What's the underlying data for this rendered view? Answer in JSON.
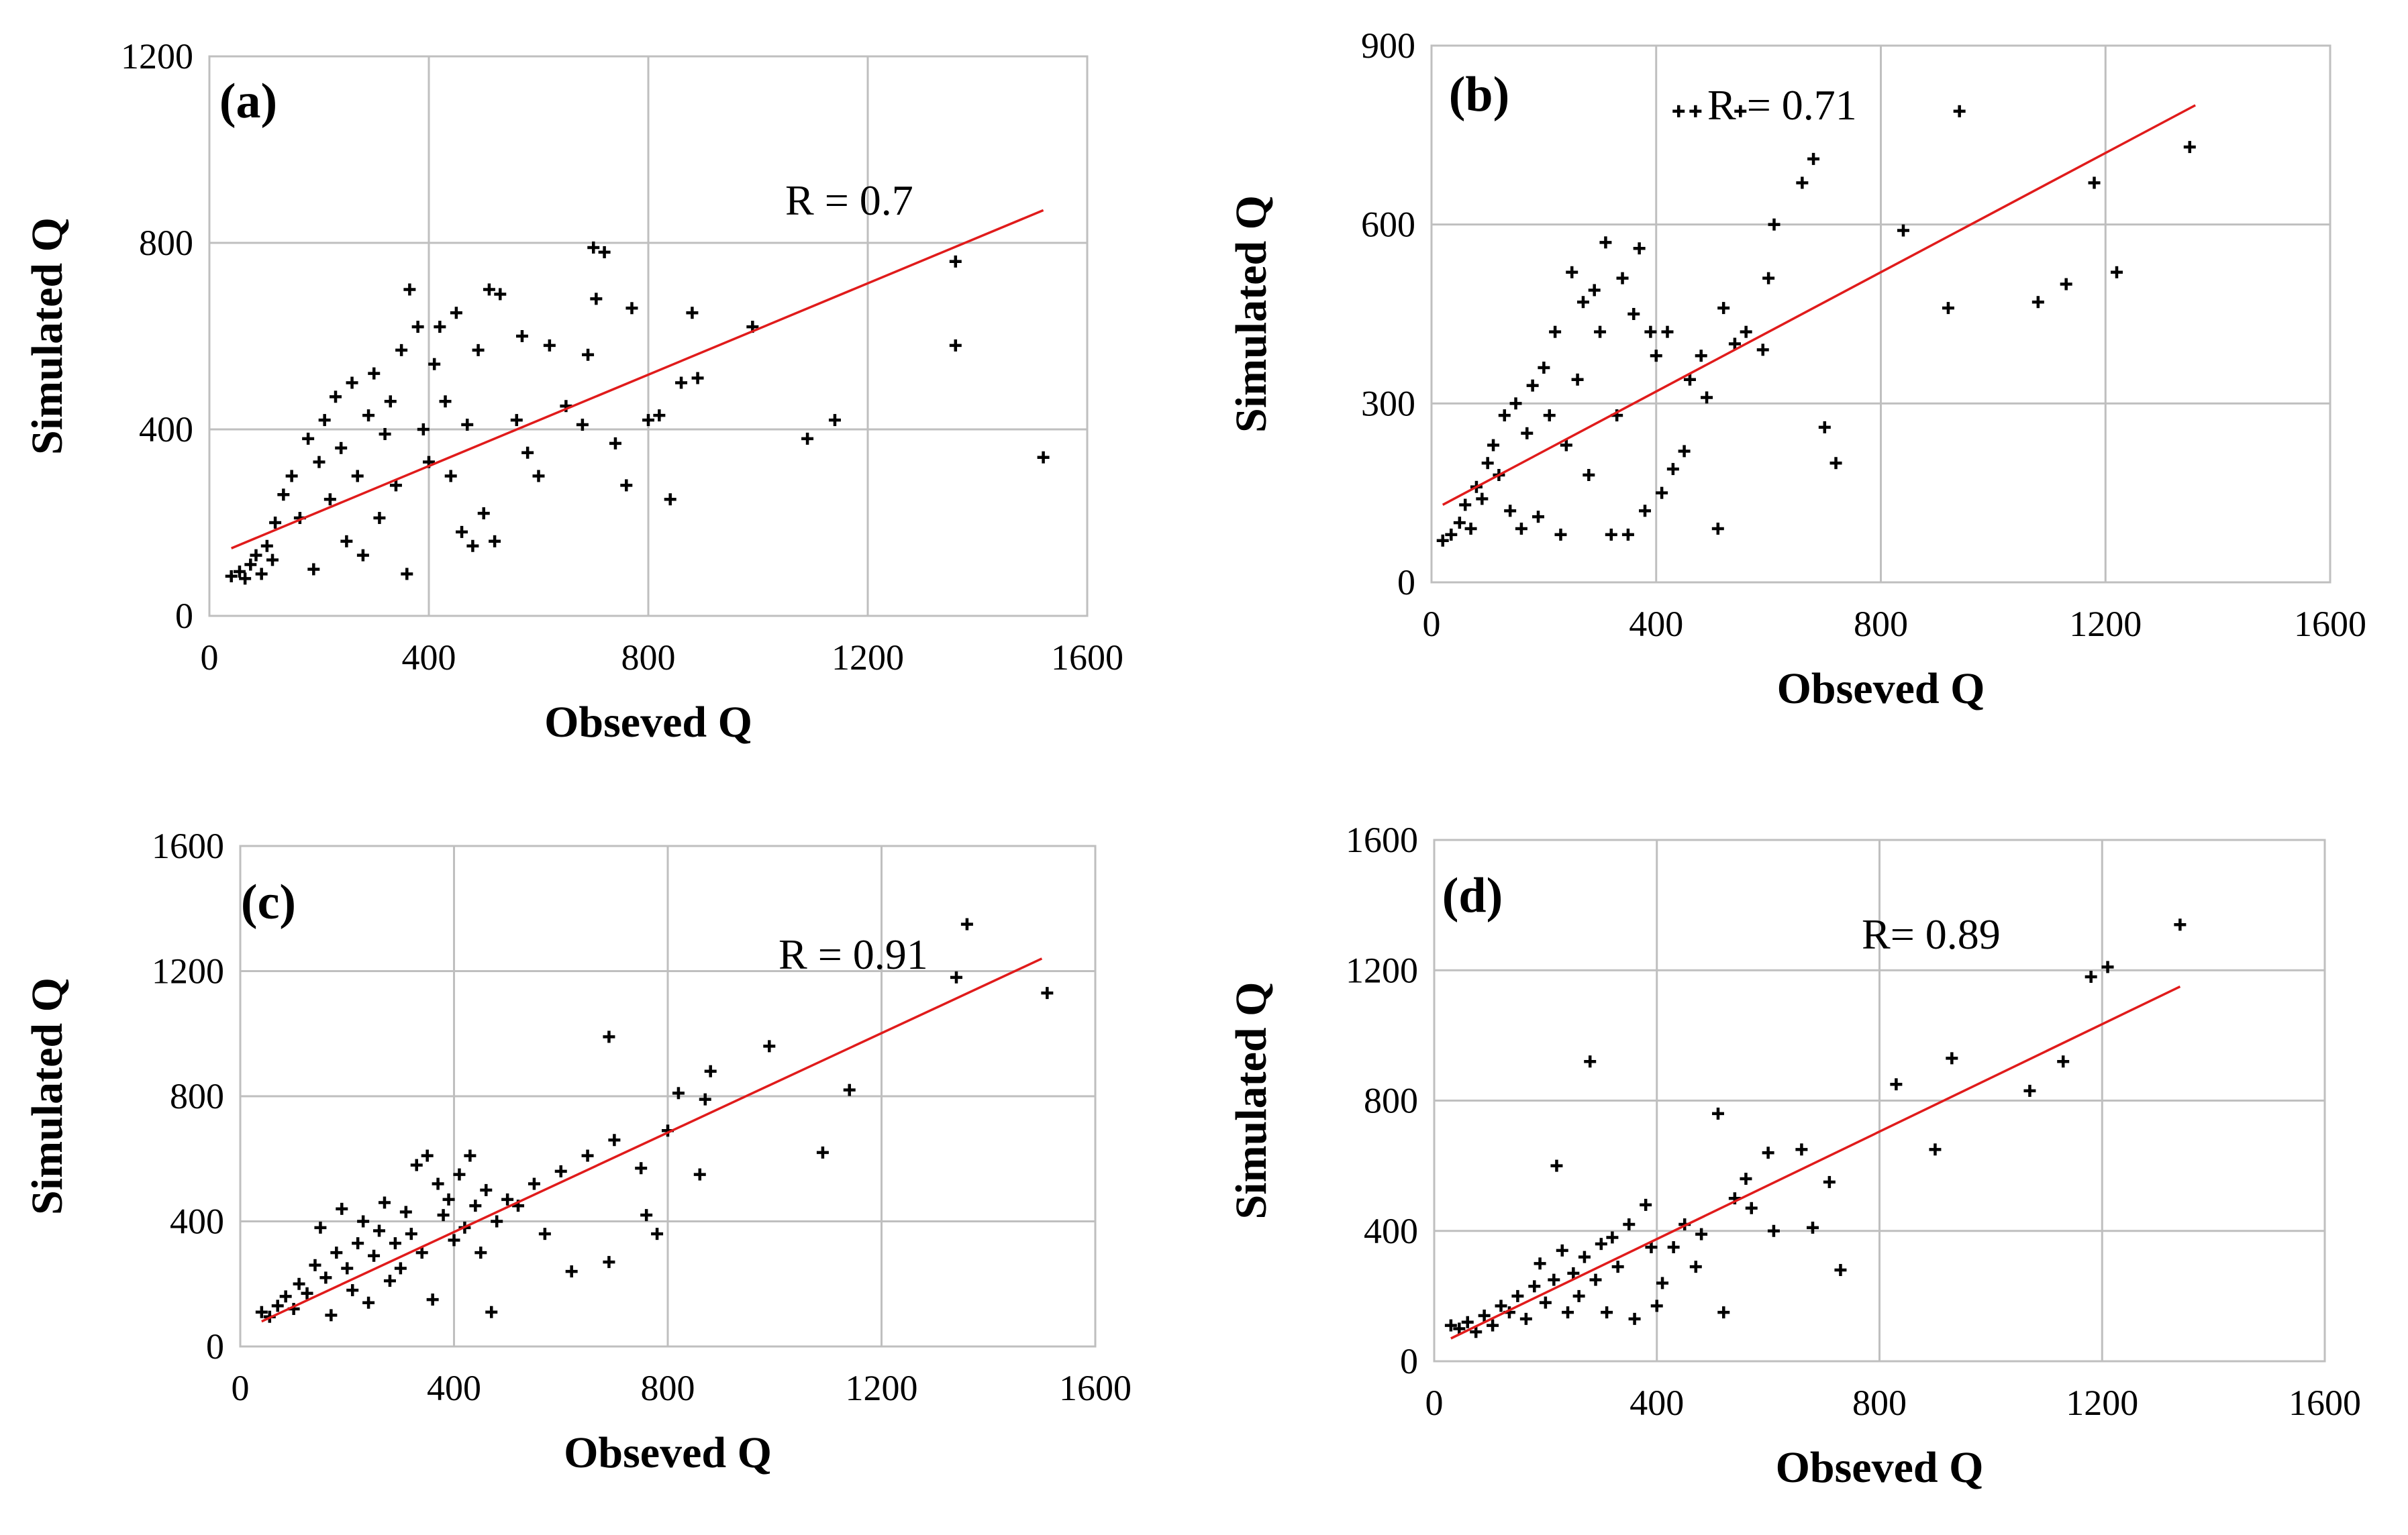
{
  "chart_data": [
    {
      "type": "scatter",
      "panel_label": "(a)",
      "xlabel": "Obseved Q",
      "ylabel": "Simulated Q",
      "annotation": "R = 0.7",
      "xlim": [
        0,
        1600
      ],
      "ylim": [
        0,
        1200
      ],
      "xticks": [
        "0",
        "400",
        "800",
        "1200",
        "1600"
      ],
      "yticks": [
        "0",
        "400",
        "800",
        "1200"
      ],
      "trendline": {
        "x": [
          40,
          1520
        ],
        "y": [
          145,
          870
        ]
      },
      "points": [
        [
          40,
          85
        ],
        [
          55,
          95
        ],
        [
          65,
          80
        ],
        [
          75,
          110
        ],
        [
          85,
          130
        ],
        [
          95,
          90
        ],
        [
          105,
          150
        ],
        [
          115,
          120
        ],
        [
          120,
          200
        ],
        [
          135,
          260
        ],
        [
          150,
          300
        ],
        [
          165,
          210
        ],
        [
          180,
          380
        ],
        [
          190,
          100
        ],
        [
          200,
          330
        ],
        [
          210,
          420
        ],
        [
          220,
          250
        ],
        [
          230,
          470
        ],
        [
          240,
          360
        ],
        [
          250,
          160
        ],
        [
          260,
          500
        ],
        [
          270,
          300
        ],
        [
          280,
          130
        ],
        [
          290,
          430
        ],
        [
          300,
          520
        ],
        [
          310,
          210
        ],
        [
          320,
          390
        ],
        [
          330,
          460
        ],
        [
          340,
          280
        ],
        [
          350,
          570
        ],
        [
          360,
          90
        ],
        [
          365,
          700
        ],
        [
          380,
          620
        ],
        [
          390,
          400
        ],
        [
          400,
          330
        ],
        [
          410,
          540
        ],
        [
          420,
          620
        ],
        [
          430,
          460
        ],
        [
          440,
          300
        ],
        [
          450,
          650
        ],
        [
          460,
          180
        ],
        [
          470,
          410
        ],
        [
          480,
          150
        ],
        [
          490,
          570
        ],
        [
          500,
          220
        ],
        [
          510,
          700
        ],
        [
          520,
          160
        ],
        [
          530,
          690
        ],
        [
          560,
          420
        ],
        [
          570,
          600
        ],
        [
          580,
          350
        ],
        [
          600,
          300
        ],
        [
          620,
          580
        ],
        [
          650,
          450
        ],
        [
          680,
          410
        ],
        [
          690,
          560
        ],
        [
          700,
          790
        ],
        [
          705,
          680
        ],
        [
          720,
          780
        ],
        [
          740,
          370
        ],
        [
          760,
          280
        ],
        [
          770,
          660
        ],
        [
          800,
          420
        ],
        [
          820,
          430
        ],
        [
          840,
          250
        ],
        [
          860,
          500
        ],
        [
          880,
          650
        ],
        [
          890,
          510
        ],
        [
          990,
          620
        ],
        [
          1090,
          380
        ],
        [
          1140,
          420
        ],
        [
          1360,
          760
        ],
        [
          1360,
          580
        ],
        [
          1520,
          340
        ]
      ]
    },
    {
      "type": "scatter",
      "panel_label": "(b)",
      "xlabel": "Obseved Q",
      "ylabel": "Simulated Q",
      "annotation": "R = 0.71",
      "xlim": [
        0,
        1600
      ],
      "ylim": [
        0,
        900
      ],
      "xticks": [
        "0",
        "400",
        "800",
        "1200",
        "1600"
      ],
      "yticks": [
        "0",
        "300",
        "600",
        "900"
      ],
      "trendline": {
        "x": [
          20,
          1360
        ],
        "y": [
          130,
          800
        ]
      },
      "points": [
        [
          20,
          70
        ],
        [
          35,
          80
        ],
        [
          50,
          100
        ],
        [
          60,
          130
        ],
        [
          70,
          90
        ],
        [
          80,
          160
        ],
        [
          90,
          140
        ],
        [
          100,
          200
        ],
        [
          110,
          230
        ],
        [
          120,
          180
        ],
        [
          130,
          280
        ],
        [
          140,
          120
        ],
        [
          150,
          300
        ],
        [
          160,
          90
        ],
        [
          170,
          250
        ],
        [
          180,
          330
        ],
        [
          190,
          110
        ],
        [
          200,
          360
        ],
        [
          210,
          280
        ],
        [
          220,
          420
        ],
        [
          230,
          80
        ],
        [
          240,
          230
        ],
        [
          250,
          520
        ],
        [
          260,
          340
        ],
        [
          270,
          470
        ],
        [
          280,
          180
        ],
        [
          290,
          490
        ],
        [
          300,
          420
        ],
        [
          310,
          570
        ],
        [
          320,
          80
        ],
        [
          330,
          280
        ],
        [
          340,
          510
        ],
        [
          350,
          80
        ],
        [
          360,
          450
        ],
        [
          370,
          560
        ],
        [
          380,
          120
        ],
        [
          390,
          420
        ],
        [
          400,
          380
        ],
        [
          410,
          150
        ],
        [
          420,
          420
        ],
        [
          430,
          190
        ],
        [
          440,
          790
        ],
        [
          450,
          220
        ],
        [
          460,
          340
        ],
        [
          470,
          790
        ],
        [
          480,
          380
        ],
        [
          490,
          310
        ],
        [
          510,
          90
        ],
        [
          520,
          460
        ],
        [
          540,
          400
        ],
        [
          550,
          790
        ],
        [
          560,
          420
        ],
        [
          590,
          390
        ],
        [
          600,
          510
        ],
        [
          610,
          600
        ],
        [
          660,
          670
        ],
        [
          680,
          710
        ],
        [
          700,
          260
        ],
        [
          720,
          200
        ],
        [
          840,
          590
        ],
        [
          920,
          460
        ],
        [
          940,
          790
        ],
        [
          1080,
          470
        ],
        [
          1130,
          500
        ],
        [
          1180,
          670
        ],
        [
          1220,
          520
        ],
        [
          1350,
          730
        ]
      ]
    },
    {
      "type": "scatter",
      "panel_label": "(c)",
      "xlabel": "Obseved Q",
      "ylabel": "Simulated Q",
      "annotation": "R = 0.91",
      "xlim": [
        0,
        1600
      ],
      "ylim": [
        0,
        1600
      ],
      "xticks": [
        "0",
        "400",
        "800",
        "1200",
        "1600"
      ],
      "yticks": [
        "0",
        "400",
        "800",
        "1200",
        "1600"
      ],
      "trendline": {
        "x": [
          40,
          1500
        ],
        "y": [
          80,
          1240
        ]
      },
      "points": [
        [
          40,
          110
        ],
        [
          55,
          95
        ],
        [
          70,
          130
        ],
        [
          85,
          160
        ],
        [
          100,
          120
        ],
        [
          110,
          200
        ],
        [
          125,
          170
        ],
        [
          140,
          260
        ],
        [
          150,
          380
        ],
        [
          160,
          220
        ],
        [
          170,
          100
        ],
        [
          180,
          300
        ],
        [
          190,
          440
        ],
        [
          200,
          250
        ],
        [
          210,
          180
        ],
        [
          220,
          330
        ],
        [
          230,
          400
        ],
        [
          240,
          140
        ],
        [
          250,
          290
        ],
        [
          260,
          370
        ],
        [
          270,
          460
        ],
        [
          280,
          210
        ],
        [
          290,
          330
        ],
        [
          300,
          250
        ],
        [
          310,
          430
        ],
        [
          320,
          360
        ],
        [
          330,
          580
        ],
        [
          340,
          300
        ],
        [
          350,
          610
        ],
        [
          360,
          150
        ],
        [
          370,
          520
        ],
        [
          380,
          420
        ],
        [
          390,
          470
        ],
        [
          400,
          340
        ],
        [
          410,
          550
        ],
        [
          420,
          380
        ],
        [
          430,
          610
        ],
        [
          440,
          450
        ],
        [
          450,
          300
        ],
        [
          460,
          500
        ],
        [
          470,
          110
        ],
        [
          480,
          400
        ],
        [
          500,
          470
        ],
        [
          520,
          450
        ],
        [
          550,
          520
        ],
        [
          570,
          360
        ],
        [
          600,
          560
        ],
        [
          620,
          240
        ],
        [
          650,
          610
        ],
        [
          690,
          990
        ],
        [
          690,
          270
        ],
        [
          700,
          660
        ],
        [
          750,
          570
        ],
        [
          760,
          420
        ],
        [
          780,
          360
        ],
        [
          800,
          690
        ],
        [
          820,
          810
        ],
        [
          860,
          550
        ],
        [
          870,
          790
        ],
        [
          880,
          880
        ],
        [
          990,
          960
        ],
        [
          1090,
          620
        ],
        [
          1140,
          820
        ],
        [
          1340,
          1180
        ],
        [
          1360,
          1350
        ],
        [
          1510,
          1130
        ]
      ]
    },
    {
      "type": "scatter",
      "panel_label": "(d)",
      "xlabel": "Obseved Q",
      "ylabel": "Simulated Q",
      "annotation": "R= 0.89",
      "xlim": [
        0,
        1600
      ],
      "ylim": [
        0,
        1600
      ],
      "xticks": [
        "0",
        "400",
        "800",
        "1200",
        "1600"
      ],
      "yticks": [
        "0",
        "400",
        "800",
        "1200",
        "1600"
      ],
      "trendline": {
        "x": [
          30,
          1340
        ],
        "y": [
          70,
          1150
        ]
      },
      "points": [
        [
          30,
          110
        ],
        [
          45,
          100
        ],
        [
          60,
          120
        ],
        [
          75,
          90
        ],
        [
          90,
          140
        ],
        [
          105,
          110
        ],
        [
          120,
          170
        ],
        [
          135,
          150
        ],
        [
          150,
          200
        ],
        [
          165,
          130
        ],
        [
          180,
          230
        ],
        [
          190,
          300
        ],
        [
          200,
          180
        ],
        [
          215,
          250
        ],
        [
          220,
          600
        ],
        [
          230,
          340
        ],
        [
          240,
          150
        ],
        [
          250,
          270
        ],
        [
          260,
          200
        ],
        [
          270,
          320
        ],
        [
          280,
          920
        ],
        [
          290,
          250
        ],
        [
          300,
          360
        ],
        [
          310,
          150
        ],
        [
          320,
          380
        ],
        [
          330,
          290
        ],
        [
          350,
          420
        ],
        [
          360,
          130
        ],
        [
          380,
          480
        ],
        [
          390,
          350
        ],
        [
          400,
          170
        ],
        [
          410,
          240
        ],
        [
          430,
          350
        ],
        [
          450,
          420
        ],
        [
          470,
          290
        ],
        [
          480,
          390
        ],
        [
          510,
          760
        ],
        [
          520,
          150
        ],
        [
          540,
          500
        ],
        [
          560,
          560
        ],
        [
          570,
          470
        ],
        [
          600,
          640
        ],
        [
          610,
          400
        ],
        [
          660,
          650
        ],
        [
          680,
          410
        ],
        [
          710,
          550
        ],
        [
          730,
          280
        ],
        [
          830,
          850
        ],
        [
          900,
          650
        ],
        [
          930,
          930
        ],
        [
          1070,
          830
        ],
        [
          1130,
          920
        ],
        [
          1180,
          1180
        ],
        [
          1210,
          1210
        ],
        [
          1340,
          1340
        ]
      ]
    }
  ]
}
